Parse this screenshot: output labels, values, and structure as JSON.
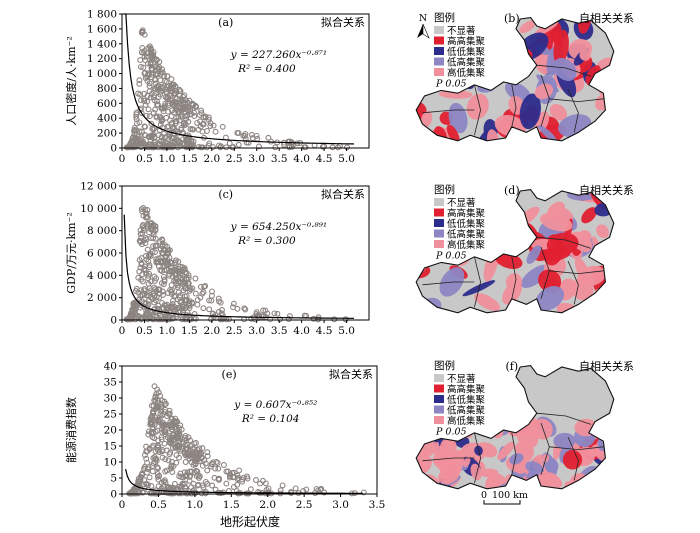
{
  "figure": {
    "xlabel": "地形起伏度",
    "colors": {
      "scatter": "#8c8480",
      "fit": "#000000",
      "map_bg": "#c8c8c8",
      "hh": "#e02030",
      "ll": "#2c2c8c",
      "lh": "#8c86c4",
      "hl": "#f0909c"
    }
  },
  "legend": {
    "title": "图例",
    "items": [
      "不显著",
      "高高集聚",
      "低低集聚",
      "低高集聚",
      "高低集聚"
    ],
    "p_label": "P 0.05"
  },
  "map": {
    "north": "N",
    "scale_zero": "0",
    "scale_label": "100 km"
  },
  "chart_data": [
    {
      "panel": "(a)",
      "type": "scatter",
      "tag": "拟合关系",
      "ylabel": "人口密度/人·km⁻²",
      "xlim": [
        0,
        5.5
      ],
      "ylim": [
        0,
        1800
      ],
      "xticks": [
        "0",
        "0.5",
        "1.0",
        "1.5",
        "2.0",
        "2.5",
        "3.0",
        "3.5",
        "4.0",
        "4.5",
        "5.0"
      ],
      "yticks": [
        "0",
        "200",
        "400",
        "600",
        "800",
        "1 000",
        "1 200",
        "1 400",
        "1 600",
        "1 800"
      ],
      "equation": "y = 227.260x⁻⁰·⁸⁷¹",
      "r2": "R² = 0.400",
      "fit": {
        "a": 227.26,
        "b": -0.871
      },
      "density": {
        "peak": 0.4,
        "spread": 1.15,
        "xmax": 5.1,
        "ymax": 1700,
        "tail": 0.3
      }
    },
    {
      "panel": "(c)",
      "type": "scatter",
      "tag": "拟合关系",
      "ylabel": "GDP/万元·km⁻²",
      "xlim": [
        0,
        5.5
      ],
      "ylim": [
        0,
        12000
      ],
      "xticks": [
        "0",
        "0.5",
        "1.0",
        "1.5",
        "2.0",
        "2.5",
        "3.0",
        "3.5",
        "4.0",
        "4.5",
        "5.0"
      ],
      "yticks": [
        "0",
        "2 000",
        "4 000",
        "6 000",
        "8 000",
        "10 000",
        "12 000"
      ],
      "equation": "y = 654.250x⁻⁰·⁸⁹¹",
      "r2": "R² = 0.300",
      "fit": {
        "a": 654.25,
        "b": -0.891
      },
      "density": {
        "peak": 0.4,
        "spread": 1.1,
        "xmax": 5.1,
        "ymax": 11500,
        "tail": 0.28
      }
    },
    {
      "panel": "(e)",
      "type": "scatter",
      "tag": "拟合关系",
      "ylabel": "能源消费指数",
      "xlim": [
        0,
        3.5
      ],
      "ylim": [
        0,
        40
      ],
      "xticks": [
        "0",
        "0.5",
        "1.0",
        "1.5",
        "2.0",
        "2.5",
        "3.0",
        "3.5"
      ],
      "yticks": [
        "0",
        "5",
        "10",
        "15",
        "20",
        "25",
        "30",
        "35",
        "40"
      ],
      "equation": "y = 0.607x⁻⁰·⁸⁵²",
      "r2": "R² = 0.104",
      "fit": {
        "a": 0.607,
        "b": -0.852
      },
      "density": {
        "peak": 0.4,
        "spread": 0.75,
        "xmax": 3.35,
        "ymax": 37,
        "tail": 0.35
      }
    }
  ],
  "maps": [
    {
      "panel": "(b)",
      "tag": "自相关关系"
    },
    {
      "panel": "(d)",
      "tag": "自相关关系"
    },
    {
      "panel": "(f)",
      "tag": "自相关关系"
    }
  ]
}
